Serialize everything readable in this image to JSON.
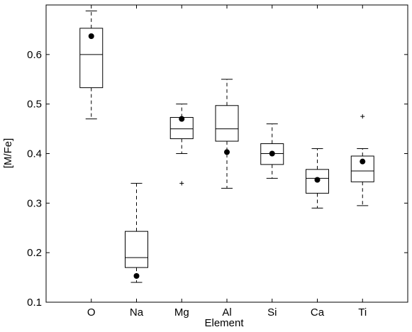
{
  "chart_data": {
    "type": "box",
    "title": "",
    "xlabel": "Element",
    "ylabel": "[M/Fe]",
    "categories": [
      "O",
      "Na",
      "Mg",
      "Al",
      "Si",
      "Ca",
      "Ti"
    ],
    "ylim": [
      0.1,
      0.7
    ],
    "yticks": [
      0.1,
      0.2,
      0.3,
      0.4,
      0.5,
      0.6
    ],
    "ytick_labels": [
      "0.1",
      "0.2",
      "0.3",
      "0.4",
      "0.5",
      "0.6"
    ],
    "grid": false,
    "boxes": [
      {
        "category": "O",
        "whisker_low": 0.47,
        "q1": 0.533,
        "median": 0.6,
        "q3": 0.653,
        "whisker_high": 0.688,
        "outliers": [],
        "dot": 0.637
      },
      {
        "category": "Na",
        "whisker_low": 0.14,
        "q1": 0.17,
        "median": 0.19,
        "q3": 0.243,
        "whisker_high": 0.34,
        "outliers": [],
        "dot": 0.153
      },
      {
        "category": "Mg",
        "whisker_low": 0.4,
        "q1": 0.43,
        "median": 0.45,
        "q3": 0.473,
        "whisker_high": 0.5,
        "outliers": [
          0.34
        ],
        "dot": 0.47
      },
      {
        "category": "Al",
        "whisker_low": 0.33,
        "q1": 0.425,
        "median": 0.45,
        "q3": 0.497,
        "whisker_high": 0.55,
        "outliers": [],
        "dot": 0.403
      },
      {
        "category": "Si",
        "whisker_low": 0.35,
        "q1": 0.378,
        "median": 0.4,
        "q3": 0.42,
        "whisker_high": 0.46,
        "outliers": [],
        "dot": 0.4
      },
      {
        "category": "Ca",
        "whisker_low": 0.29,
        "q1": 0.32,
        "median": 0.35,
        "q3": 0.368,
        "whisker_high": 0.41,
        "outliers": [],
        "dot": 0.347
      },
      {
        "category": "Ti",
        "whisker_low": 0.295,
        "q1": 0.343,
        "median": 0.365,
        "q3": 0.395,
        "whisker_high": 0.41,
        "outliers": [
          0.475
        ],
        "dot": 0.384
      }
    ],
    "colors": {
      "box": "#000000",
      "dot": "#000000",
      "background": "#ffffff"
    }
  }
}
